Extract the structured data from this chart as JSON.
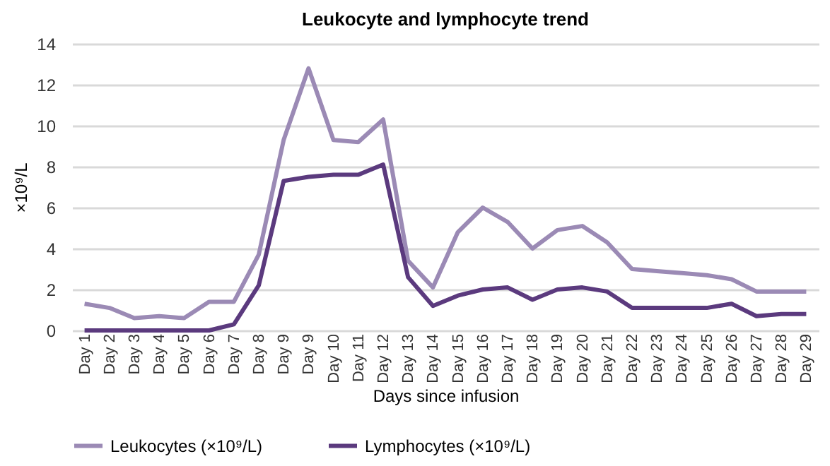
{
  "chart_data": {
    "type": "line",
    "title": "Leukocyte and lymphocyte trend",
    "xlabel": "Days since infusion",
    "ylabel": "×10⁹/L",
    "categories": [
      "Day 1",
      "Day 2",
      "Day 3",
      "Day 4",
      "Day 5",
      "Day 6",
      "Day 7",
      "Day 8",
      "Day 9",
      "Day 9",
      "Day 10",
      "Day 11",
      "Day 12",
      "Day 13",
      "Day 14",
      "Day 15",
      "Day 16",
      "Day 17",
      "Day 18",
      "Day 19",
      "Day 20",
      "Day 21",
      "Day 22",
      "Day 23",
      "Day 24",
      "Day 25",
      "Day 26",
      "Day 27",
      "Day 28",
      "Day 29"
    ],
    "series": [
      {
        "name": "Leukocytes (×10⁹/L)",
        "color": "#9b8ab5",
        "values": [
          1.3,
          1.1,
          0.6,
          0.7,
          0.6,
          1.4,
          1.4,
          3.7,
          9.3,
          12.8,
          9.3,
          9.2,
          10.3,
          3.4,
          2.1,
          4.8,
          6.0,
          5.3,
          4.0,
          4.9,
          5.1,
          4.3,
          3.0,
          2.9,
          2.8,
          2.7,
          2.5,
          1.9,
          1.9,
          1.9
        ]
      },
      {
        "name": "Lymphocytes (×10⁹/L)",
        "color": "#5b3a7e",
        "values": [
          0,
          0,
          0,
          0,
          0,
          0,
          0.3,
          2.2,
          7.3,
          7.5,
          7.6,
          7.6,
          8.1,
          2.6,
          1.2,
          1.7,
          2.0,
          2.1,
          1.5,
          2.0,
          2.1,
          1.9,
          1.1,
          1.1,
          1.1,
          1.1,
          1.3,
          0.7,
          0.8,
          0.8
        ]
      }
    ],
    "ylim": [
      0,
      14
    ],
    "yticks": [
      0,
      2,
      4,
      6,
      8,
      10,
      12,
      14
    ],
    "grid": "y",
    "legend": "bottom",
    "marker": "none",
    "line_style": "solid"
  }
}
